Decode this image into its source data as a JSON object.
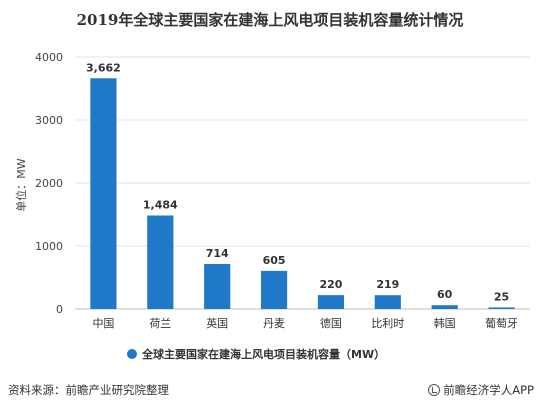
{
  "chart_data": {
    "type": "bar",
    "title": "2019年全球主要国家在建海上风电项目装机容量统计情况",
    "ylabel": "单位：MW",
    "categories": [
      "中国",
      "荷兰",
      "英国",
      "丹麦",
      "德国",
      "比利时",
      "韩国",
      "葡萄牙"
    ],
    "series": [
      {
        "name": "全球主要国家在建海上风电项目装机容量（MW）",
        "values": [
          3662,
          1484,
          714,
          605,
          220,
          219,
          60,
          25
        ],
        "labels": [
          "3,662",
          "1,484",
          "714",
          "605",
          "220",
          "219",
          "60",
          "25"
        ]
      }
    ],
    "yticks": [
      "0",
      "1000",
      "2000",
      "3000",
      "4000"
    ],
    "ylim": [
      0,
      4000
    ],
    "grid": true,
    "legend": "bottom",
    "bar_color": "#1f78c8"
  },
  "footer": {
    "source": "资料来源：前瞻产业研究院整理",
    "credit": "前瞻经济学人APP"
  }
}
